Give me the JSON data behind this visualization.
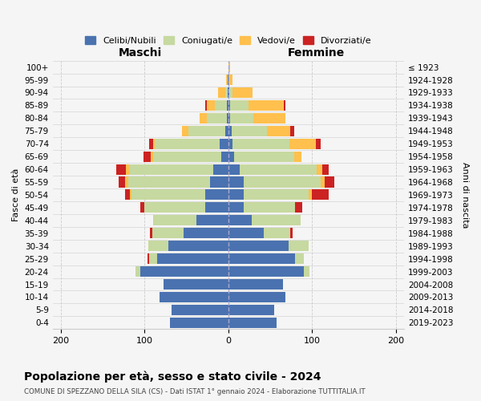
{
  "age_groups": [
    "0-4",
    "5-9",
    "10-14",
    "15-19",
    "20-24",
    "25-29",
    "30-34",
    "35-39",
    "40-44",
    "45-49",
    "50-54",
    "55-59",
    "60-64",
    "65-69",
    "70-74",
    "75-79",
    "80-84",
    "85-89",
    "90-94",
    "95-99",
    "100+"
  ],
  "birth_years": [
    "2019-2023",
    "2014-2018",
    "2009-2013",
    "2004-2008",
    "1999-2003",
    "1994-1998",
    "1989-1993",
    "1984-1988",
    "1979-1983",
    "1974-1978",
    "1969-1973",
    "1964-1968",
    "1959-1963",
    "1954-1958",
    "1949-1953",
    "1944-1948",
    "1939-1943",
    "1934-1938",
    "1929-1933",
    "1924-1928",
    "≤ 1923"
  ],
  "colors": {
    "celibe": "#4a72b0",
    "coniugato": "#c6d9a0",
    "vedovo": "#ffc04d",
    "divorziato": "#cc2222"
  },
  "maschi": {
    "celibe": [
      70,
      68,
      82,
      77,
      105,
      85,
      72,
      53,
      38,
      28,
      28,
      22,
      18,
      8,
      10,
      4,
      2,
      2,
      1,
      1,
      0
    ],
    "coniugato": [
      0,
      0,
      0,
      0,
      6,
      10,
      24,
      38,
      52,
      72,
      88,
      98,
      100,
      82,
      78,
      44,
      24,
      14,
      3,
      1,
      0
    ],
    "vedovo": [
      0,
      0,
      0,
      0,
      0,
      0,
      0,
      0,
      0,
      0,
      2,
      3,
      4,
      3,
      2,
      7,
      8,
      10,
      8,
      1,
      0
    ],
    "divorziato": [
      0,
      0,
      0,
      0,
      0,
      2,
      0,
      3,
      0,
      5,
      5,
      8,
      12,
      8,
      5,
      0,
      0,
      2,
      0,
      0,
      0
    ]
  },
  "femmine": {
    "celibe": [
      58,
      55,
      68,
      65,
      90,
      80,
      72,
      42,
      28,
      18,
      18,
      18,
      14,
      7,
      5,
      4,
      2,
      2,
      1,
      0,
      0
    ],
    "coniugato": [
      0,
      0,
      0,
      0,
      7,
      10,
      24,
      32,
      58,
      62,
      78,
      92,
      92,
      72,
      68,
      42,
      28,
      22,
      4,
      0,
      0
    ],
    "vedovo": [
      0,
      0,
      0,
      0,
      0,
      0,
      0,
      0,
      0,
      0,
      4,
      5,
      6,
      8,
      32,
      28,
      38,
      42,
      24,
      5,
      2
    ],
    "divorziato": [
      0,
      0,
      0,
      0,
      0,
      0,
      0,
      3,
      0,
      8,
      20,
      12,
      8,
      0,
      5,
      5,
      0,
      2,
      0,
      0,
      0
    ]
  },
  "xlim": 210,
  "title_main": "Popolazione per età, sesso e stato civile - 2024",
  "title_sub": "COMUNE DI SPEZZANO DELLA SILA (CS) - Dati ISTAT 1° gennaio 2024 - Elaborazione TUTTITALIA.IT",
  "label_maschi": "Maschi",
  "label_femmine": "Femmine",
  "ylabel_left": "Fasce di età",
  "ylabel_right": "Anni di nascita",
  "legend_labels": [
    "Celibi/Nubili",
    "Coniugati/e",
    "Vedovi/e",
    "Divorziati/e"
  ],
  "bg_color": "#f5f5f5",
  "grid_color": "#cccccc"
}
